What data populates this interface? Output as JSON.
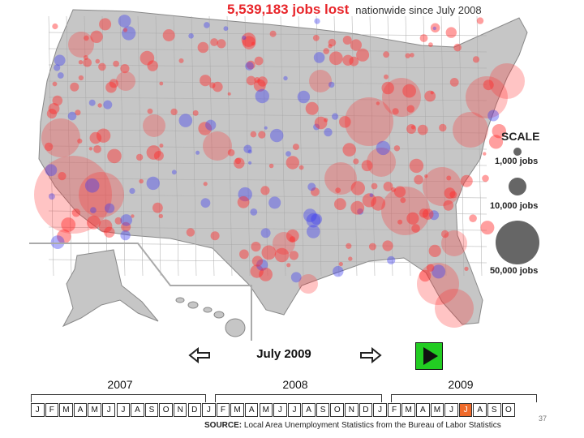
{
  "headline": {
    "jobs_lost": "5,539,183 jobs lost",
    "subtitle": "nationwide since July 2008"
  },
  "legend": {
    "title": "SCALE",
    "items": [
      {
        "label": "1,000 jobs",
        "value": 1000
      },
      {
        "label": "10,000 jobs",
        "value": 10000
      },
      {
        "label": "50,000 jobs",
        "value": 50000
      }
    ],
    "colors": {
      "loss": "#ff2a2a",
      "gain": "#3b3bf0",
      "land": "#c6c6c6"
    }
  },
  "controls": {
    "current_month": "July 2009",
    "prev_icon": "left-arrow-icon",
    "next_icon": "right-arrow-icon",
    "play_icon": "play-icon"
  },
  "timeline": {
    "years": [
      "2007",
      "2008",
      "2009"
    ],
    "months": [
      "J",
      "F",
      "M",
      "A",
      "M",
      "J",
      "J",
      "A",
      "S",
      "O",
      "N",
      "D",
      "J",
      "F",
      "M",
      "A",
      "M",
      "J",
      "J",
      "A",
      "S",
      "O",
      "N",
      "D",
      "J",
      "F",
      "M",
      "A",
      "M",
      "J",
      "J",
      "A",
      "S",
      "O"
    ],
    "active_index": 30
  },
  "source": {
    "label": "SOURCE:",
    "text": "Local Area Unemployment Statistics from the Bureau of Labor Statistics"
  },
  "page_number": "37"
}
